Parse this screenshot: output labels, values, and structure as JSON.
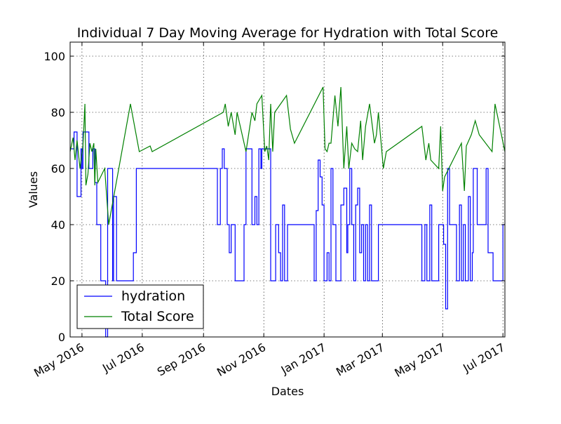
{
  "chart_data": {
    "type": "line",
    "title": "Individual 7 Day Moving Average for Hydration with Total Score",
    "xlabel": "Dates",
    "ylabel": "Values",
    "xlim": [
      "2016-04-19",
      "2017-07-03"
    ],
    "ylim": [
      0,
      105
    ],
    "grid": true,
    "legend_position": "lower-left",
    "x_ticks": [
      {
        "date": "2016-05-01",
        "label": "May 2016"
      },
      {
        "date": "2016-07-01",
        "label": "Jul 2016"
      },
      {
        "date": "2016-09-01",
        "label": "Sep 2016"
      },
      {
        "date": "2016-11-01",
        "label": "Nov 2016"
      },
      {
        "date": "2017-01-01",
        "label": "Jan 2017"
      },
      {
        "date": "2017-03-01",
        "label": "Mar 2017"
      },
      {
        "date": "2017-05-01",
        "label": "May 2017"
      },
      {
        "date": "2017-07-01",
        "label": "Jul 2017"
      }
    ],
    "y_ticks": [
      0,
      20,
      40,
      60,
      80,
      100
    ],
    "series": [
      {
        "name": "hydration",
        "color": "#0000ff",
        "step": true,
        "points": [
          [
            "2016-04-20",
            67
          ],
          [
            "2016-04-23",
            73
          ],
          [
            "2016-04-26",
            50
          ],
          [
            "2016-04-30",
            67
          ],
          [
            "2016-05-01",
            60
          ],
          [
            "2016-05-02",
            73
          ],
          [
            "2016-05-08",
            60
          ],
          [
            "2016-05-12",
            67
          ],
          [
            "2016-05-14",
            55
          ],
          [
            "2016-05-16",
            40
          ],
          [
            "2016-05-20",
            20
          ],
          [
            "2016-05-25",
            0
          ],
          [
            "2016-05-27",
            60
          ],
          [
            "2016-06-01",
            20
          ],
          [
            "2016-06-02",
            50
          ],
          [
            "2016-06-05",
            20
          ],
          [
            "2016-06-14",
            20
          ],
          [
            "2016-06-22",
            30
          ],
          [
            "2016-06-25",
            60
          ],
          [
            "2016-08-20",
            60
          ],
          [
            "2016-09-15",
            40
          ],
          [
            "2016-09-18",
            60
          ],
          [
            "2016-09-20",
            67
          ],
          [
            "2016-09-22",
            60
          ],
          [
            "2016-09-25",
            40
          ],
          [
            "2016-09-27",
            30
          ],
          [
            "2016-09-29",
            40
          ],
          [
            "2016-10-03",
            20
          ],
          [
            "2016-10-08",
            20
          ],
          [
            "2016-10-12",
            40
          ],
          [
            "2016-10-14",
            67
          ],
          [
            "2016-10-20",
            40
          ],
          [
            "2016-10-23",
            50
          ],
          [
            "2016-10-25",
            40
          ],
          [
            "2016-10-27",
            67
          ],
          [
            "2016-10-29",
            60
          ],
          [
            "2016-10-30",
            67
          ],
          [
            "2016-11-08",
            20
          ],
          [
            "2016-11-13",
            40
          ],
          [
            "2016-11-16",
            30
          ],
          [
            "2016-11-18",
            20
          ],
          [
            "2016-11-20",
            47
          ],
          [
            "2016-11-22",
            20
          ],
          [
            "2016-11-25",
            40
          ],
          [
            "2016-12-22",
            20
          ],
          [
            "2016-12-24",
            45
          ],
          [
            "2016-12-26",
            63
          ],
          [
            "2016-12-28",
            57
          ],
          [
            "2016-12-30",
            47
          ],
          [
            "2017-01-01",
            20
          ],
          [
            "2017-01-04",
            30
          ],
          [
            "2017-01-06",
            20
          ],
          [
            "2017-01-08",
            60
          ],
          [
            "2017-01-10",
            40
          ],
          [
            "2017-01-13",
            20
          ],
          [
            "2017-01-18",
            47
          ],
          [
            "2017-01-21",
            53
          ],
          [
            "2017-01-24",
            30
          ],
          [
            "2017-01-25",
            40
          ],
          [
            "2017-01-27",
            60
          ],
          [
            "2017-01-29",
            40
          ],
          [
            "2017-01-31",
            20
          ],
          [
            "2017-02-02",
            47
          ],
          [
            "2017-02-04",
            53
          ],
          [
            "2017-02-06",
            30
          ],
          [
            "2017-02-08",
            40
          ],
          [
            "2017-02-10",
            20
          ],
          [
            "2017-02-12",
            40
          ],
          [
            "2017-02-14",
            20
          ],
          [
            "2017-02-16",
            47
          ],
          [
            "2017-02-18",
            20
          ],
          [
            "2017-02-25",
            40
          ],
          [
            "2017-04-10",
            20
          ],
          [
            "2017-04-13",
            40
          ],
          [
            "2017-04-15",
            20
          ],
          [
            "2017-04-18",
            47
          ],
          [
            "2017-04-20",
            20
          ],
          [
            "2017-04-27",
            40
          ],
          [
            "2017-05-02",
            33
          ],
          [
            "2017-05-04",
            10
          ],
          [
            "2017-05-06",
            60
          ],
          [
            "2017-05-08",
            40
          ],
          [
            "2017-05-15",
            20
          ],
          [
            "2017-05-18",
            47
          ],
          [
            "2017-05-20",
            20
          ],
          [
            "2017-05-22",
            40
          ],
          [
            "2017-05-24",
            20
          ],
          [
            "2017-05-27",
            50
          ],
          [
            "2017-05-29",
            20
          ],
          [
            "2017-05-31",
            30
          ],
          [
            "2017-06-01",
            60
          ],
          [
            "2017-06-05",
            40
          ],
          [
            "2017-06-14",
            60
          ],
          [
            "2017-06-16",
            30
          ],
          [
            "2017-06-21",
            20
          ],
          [
            "2017-07-01",
            40
          ]
        ]
      },
      {
        "name": "Total Score",
        "color": "#008000",
        "step": false,
        "points": [
          [
            "2016-04-19",
            66
          ],
          [
            "2016-04-22",
            71
          ],
          [
            "2016-04-24",
            63
          ],
          [
            "2016-04-26",
            70
          ],
          [
            "2016-04-29",
            60
          ],
          [
            "2016-05-02",
            68
          ],
          [
            "2016-05-04",
            83
          ],
          [
            "2016-05-05",
            54
          ],
          [
            "2016-05-07",
            58
          ],
          [
            "2016-05-09",
            69
          ],
          [
            "2016-05-11",
            66
          ],
          [
            "2016-05-13",
            69
          ],
          [
            "2016-05-14",
            54
          ],
          [
            "2016-05-15",
            67
          ],
          [
            "2016-05-17",
            55
          ],
          [
            "2016-05-24",
            60
          ],
          [
            "2016-05-28",
            40
          ],
          [
            "2016-06-19",
            83
          ],
          [
            "2016-06-28",
            66
          ],
          [
            "2016-07-09",
            68
          ],
          [
            "2016-07-11",
            66
          ],
          [
            "2016-09-21",
            80
          ],
          [
            "2016-09-23",
            83
          ],
          [
            "2016-09-26",
            75
          ],
          [
            "2016-09-29",
            80
          ],
          [
            "2016-10-03",
            72
          ],
          [
            "2016-10-05",
            80
          ],
          [
            "2016-10-14",
            66
          ],
          [
            "2016-10-20",
            80
          ],
          [
            "2016-10-23",
            77
          ],
          [
            "2016-10-25",
            83
          ],
          [
            "2016-10-30",
            86
          ],
          [
            "2016-11-02",
            66
          ],
          [
            "2016-11-04",
            68
          ],
          [
            "2016-11-06",
            63
          ],
          [
            "2016-11-08",
            83
          ],
          [
            "2016-11-10",
            66
          ],
          [
            "2016-11-12",
            80
          ],
          [
            "2016-11-24",
            86
          ],
          [
            "2016-11-28",
            74
          ],
          [
            "2016-12-02",
            69
          ],
          [
            "2016-12-31",
            89
          ],
          [
            "2017-01-02",
            67
          ],
          [
            "2017-01-04",
            66
          ],
          [
            "2017-01-06",
            69
          ],
          [
            "2017-01-08",
            69
          ],
          [
            "2017-01-12",
            86
          ],
          [
            "2017-01-15",
            75
          ],
          [
            "2017-01-18",
            89
          ],
          [
            "2017-01-21",
            60
          ],
          [
            "2017-01-24",
            75
          ],
          [
            "2017-01-26",
            60
          ],
          [
            "2017-01-29",
            69
          ],
          [
            "2017-02-01",
            67
          ],
          [
            "2017-02-04",
            66
          ],
          [
            "2017-02-07",
            77
          ],
          [
            "2017-02-09",
            63
          ],
          [
            "2017-02-12",
            75
          ],
          [
            "2017-02-16",
            83
          ],
          [
            "2017-02-21",
            69
          ],
          [
            "2017-02-23",
            72
          ],
          [
            "2017-02-25",
            80
          ],
          [
            "2017-03-02",
            60
          ],
          [
            "2017-03-05",
            66
          ],
          [
            "2017-04-10",
            75
          ],
          [
            "2017-04-14",
            63
          ],
          [
            "2017-04-17",
            69
          ],
          [
            "2017-04-19",
            63
          ],
          [
            "2017-04-27",
            60
          ],
          [
            "2017-04-29",
            75
          ],
          [
            "2017-05-01",
            52
          ],
          [
            "2017-05-03",
            57
          ],
          [
            "2017-05-20",
            69
          ],
          [
            "2017-05-23",
            52
          ],
          [
            "2017-05-25",
            68
          ],
          [
            "2017-05-30",
            72
          ],
          [
            "2017-06-03",
            77
          ],
          [
            "2017-06-07",
            72
          ],
          [
            "2017-06-20",
            66
          ],
          [
            "2017-06-23",
            83
          ],
          [
            "2017-07-03",
            66
          ]
        ]
      }
    ]
  }
}
